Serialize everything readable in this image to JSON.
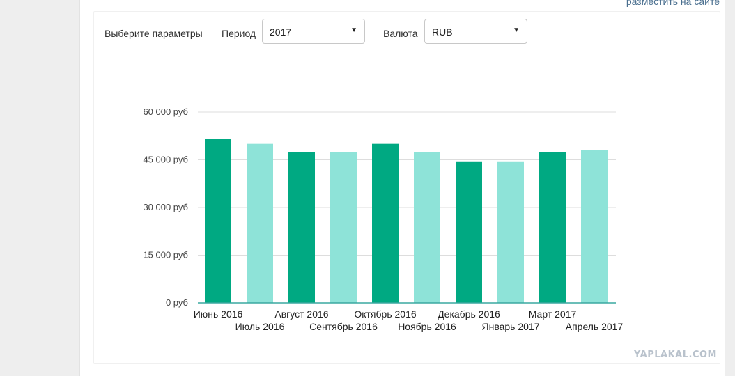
{
  "top_link": "разместить на сайте",
  "controls": {
    "params_label": "Выберите параметры",
    "period_label": "Период",
    "period_value": "2017",
    "currency_label": "Валюта",
    "currency_value": "RUB"
  },
  "colors": {
    "dark": "#00a982",
    "light": "#8ee3d8",
    "grid": "#dddddd",
    "axis": "#3aa8a0"
  },
  "watermark": "YAPLAKAL.COM",
  "chart_data": {
    "type": "bar",
    "categories": [
      "Июнь 2016",
      "Июль 2016",
      "Август 2016",
      "Сентябрь 2016",
      "Октябрь 2016",
      "Ноябрь 2016",
      "Декабрь 2016",
      "Январь 2017",
      "Март 2017",
      "Апрель 2017"
    ],
    "values": [
      51500,
      50000,
      47500,
      47500,
      50000,
      47500,
      44500,
      44500,
      47500,
      48000
    ],
    "ylim": [
      0,
      60000
    ],
    "yticks": [
      0,
      15000,
      30000,
      45000,
      60000
    ],
    "ytick_labels": [
      "0 руб",
      "15 000 руб",
      "30 000 руб",
      "45 000 руб",
      "60 000 руб"
    ],
    "grid": true
  }
}
